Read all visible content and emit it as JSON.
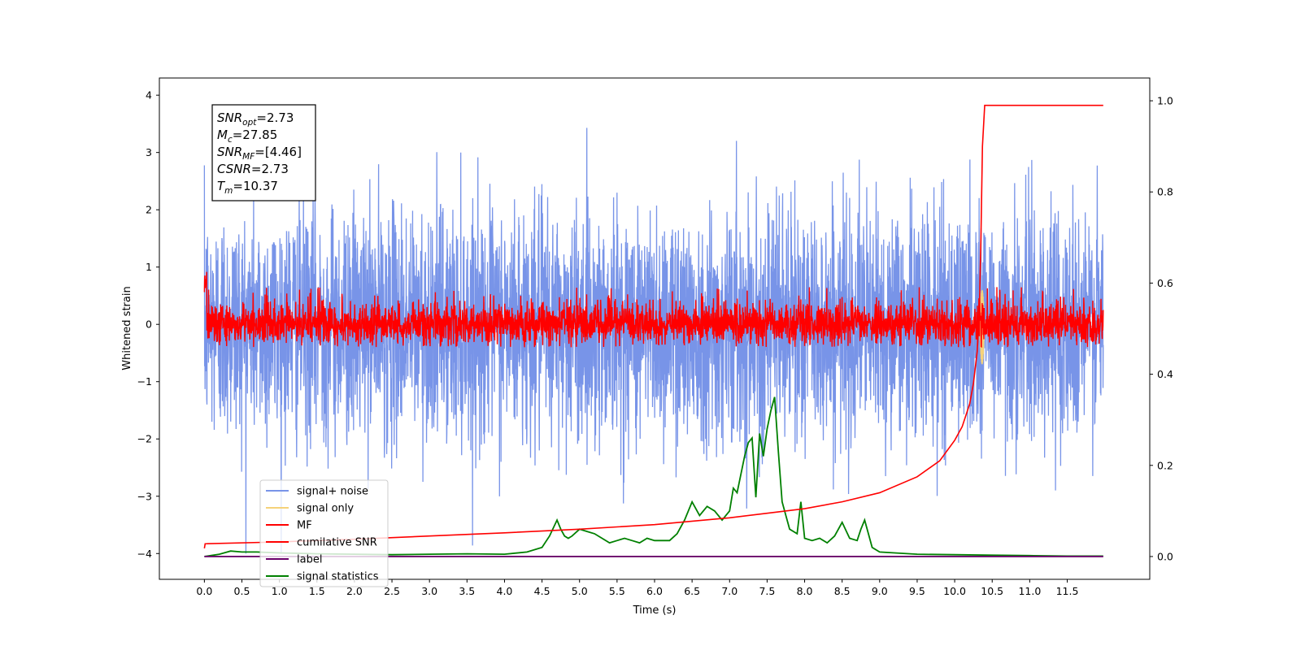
{
  "chart_data": {
    "type": "line",
    "xlabel": "Time (s)",
    "ylabel": "Whitened strain",
    "xlim": [
      -0.6,
      12.6
    ],
    "ylim": [
      -4.45,
      4.3
    ],
    "y2lim": [
      -0.05,
      1.05
    ],
    "xticks": [
      "0.0",
      "0.5",
      "1.0",
      "1.5",
      "2.0",
      "2.5",
      "3.0",
      "3.5",
      "4.0",
      "4.5",
      "5.0",
      "5.5",
      "6.0",
      "6.5",
      "7.0",
      "7.5",
      "8.0",
      "8.5",
      "9.0",
      "9.5",
      "10.0",
      "10.5",
      "11.0",
      "11.5"
    ],
    "yticks": [
      "−4",
      "−3",
      "−2",
      "−1",
      "0",
      "1",
      "2",
      "3",
      "4"
    ],
    "y2ticks": [
      "0.0",
      "0.2",
      "0.4",
      "0.6",
      "0.8",
      "1.0"
    ],
    "annotation_box": [
      {
        "name": "SNR",
        "sub": "opt",
        "value": "=2.73"
      },
      {
        "name": "M",
        "sub": "c",
        "value": "=27.85"
      },
      {
        "name": "SNR",
        "sub": "MF",
        "value": "=[4.46]"
      },
      {
        "name": "CSNR",
        "sub": "",
        "value": "=2.73"
      },
      {
        "name": "T",
        "sub": "m",
        "value": "=10.37"
      }
    ],
    "series": [
      {
        "name": "signal+ noise",
        "color": "#7894e8",
        "axis": "left",
        "description_values": {
          "t_start": 0.0,
          "t_end": 11.98,
          "mean": 0.0,
          "std": 1.0,
          "min": -4.0,
          "max": 3.95
        }
      },
      {
        "name": "signal only",
        "color": "#f5d27a",
        "axis": "left",
        "description_values": {
          "t_start": 10.33,
          "t_end": 10.4,
          "peak": 0.6,
          "trough": -0.7
        }
      },
      {
        "name": "MF",
        "color": "#ff0000",
        "axis": "left",
        "description_values": {
          "t_start": 0.0,
          "t_end": 11.98,
          "mean": 0.0,
          "min": -0.4,
          "max": 0.95
        }
      },
      {
        "name": "cumilative SNR",
        "color": "#ff0000",
        "axis": "right",
        "x": [
          0.0,
          0.01,
          1.0,
          2.0,
          3.0,
          4.0,
          5.0,
          6.0,
          7.0,
          7.5,
          8.0,
          8.5,
          9.0,
          9.5,
          9.8,
          10.0,
          10.1,
          10.2,
          10.25,
          10.3,
          10.33,
          10.35,
          10.37,
          10.4,
          11.0,
          11.5,
          11.98
        ],
        "y": [
          0.018,
          0.028,
          0.032,
          0.038,
          0.045,
          0.052,
          0.06,
          0.07,
          0.085,
          0.095,
          0.105,
          0.12,
          0.14,
          0.175,
          0.21,
          0.255,
          0.285,
          0.335,
          0.38,
          0.45,
          0.55,
          0.7,
          0.9,
          0.99,
          0.99,
          0.99,
          0.99
        ]
      },
      {
        "name": "label",
        "color": "#6a006a",
        "axis": "right",
        "x": [
          0.0,
          11.98
        ],
        "y": [
          0.0,
          0.0
        ]
      },
      {
        "name": "signal statistics",
        "color": "#008000",
        "axis": "right",
        "x": [
          0.0,
          0.2,
          0.35,
          0.5,
          0.7,
          1.0,
          1.5,
          2.0,
          2.5,
          3.0,
          3.5,
          4.0,
          4.3,
          4.5,
          4.6,
          4.7,
          4.75,
          4.8,
          4.85,
          4.9,
          5.0,
          5.1,
          5.2,
          5.3,
          5.4,
          5.5,
          5.6,
          5.7,
          5.8,
          5.9,
          6.0,
          6.2,
          6.3,
          6.4,
          6.5,
          6.6,
          6.7,
          6.8,
          6.9,
          7.0,
          7.05,
          7.1,
          7.2,
          7.25,
          7.3,
          7.35,
          7.4,
          7.45,
          7.5,
          7.55,
          7.6,
          7.65,
          7.7,
          7.8,
          7.9,
          7.95,
          8.0,
          8.1,
          8.2,
          8.3,
          8.4,
          8.5,
          8.6,
          8.7,
          8.75,
          8.8,
          8.85,
          8.9,
          9.0,
          9.2,
          9.5,
          10.0,
          10.5,
          11.0,
          11.5,
          11.98
        ],
        "y": [
          0.0,
          0.005,
          0.012,
          0.01,
          0.01,
          0.008,
          0.006,
          0.005,
          0.004,
          0.005,
          0.006,
          0.005,
          0.01,
          0.02,
          0.045,
          0.08,
          0.06,
          0.045,
          0.04,
          0.045,
          0.06,
          0.055,
          0.05,
          0.04,
          0.03,
          0.035,
          0.04,
          0.035,
          0.03,
          0.04,
          0.035,
          0.035,
          0.05,
          0.08,
          0.12,
          0.09,
          0.11,
          0.1,
          0.08,
          0.1,
          0.15,
          0.14,
          0.22,
          0.25,
          0.26,
          0.13,
          0.27,
          0.22,
          0.28,
          0.32,
          0.35,
          0.23,
          0.12,
          0.06,
          0.05,
          0.12,
          0.04,
          0.035,
          0.04,
          0.03,
          0.045,
          0.075,
          0.04,
          0.035,
          0.06,
          0.08,
          0.05,
          0.02,
          0.01,
          0.008,
          0.005,
          0.004,
          0.003,
          0.002,
          0.001,
          0.001
        ]
      }
    ],
    "legend": {
      "placement": "lower-left",
      "entries": [
        "signal+ noise",
        "signal only",
        "MF",
        "cumilative SNR",
        "label",
        "signal statistics"
      ]
    },
    "grid": false
  }
}
